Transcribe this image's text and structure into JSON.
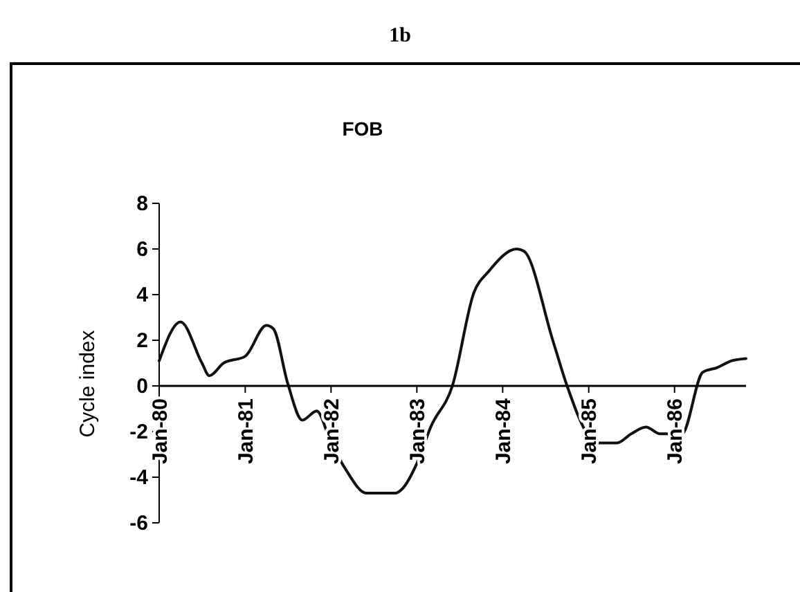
{
  "chart_data": {
    "type": "line",
    "title": "1b",
    "subtitle": "FOB",
    "ylabel": "Cycle index",
    "x": [
      "1980-01",
      "1980-04",
      "1980-07",
      "1980-08",
      "1980-10",
      "1981-01",
      "1981-04",
      "1981-05",
      "1981-07",
      "1981-09",
      "1981-11",
      "1982-01",
      "1982-03",
      "1982-06",
      "1982-10",
      "1982-11",
      "1983-01",
      "1983-03",
      "1983-06",
      "1983-09",
      "1983-11",
      "1984-03",
      "1984-04",
      "1984-08",
      "1984-10",
      "1985-01",
      "1985-02",
      "1985-05",
      "1985-07",
      "1985-09",
      "1985-11",
      "1986-02",
      "1986-05",
      "1986-07",
      "1986-09",
      "1986-11"
    ],
    "series": [
      {
        "color": "#111111",
        "values": [
          1.1,
          2.8,
          1.0,
          0.45,
          1.0,
          1.3,
          2.65,
          2.5,
          0.1,
          -1.5,
          -1.1,
          -2.5,
          -3.6,
          -4.7,
          -4.7,
          -4.5,
          -3.4,
          -1.8,
          0,
          4.1,
          5.0,
          6.0,
          5.9,
          2.0,
          0,
          -2.2,
          -2.5,
          -2.5,
          -2.1,
          -1.8,
          -2.1,
          -2.1,
          0.6,
          0.8,
          1.1,
          1.2
        ]
      }
    ],
    "xlim": [
      "1980-01",
      "1986-11"
    ],
    "xticks": [
      {
        "value": "1980-01",
        "label": "Jan-80"
      },
      {
        "value": "1981-01",
        "label": "Jan-81"
      },
      {
        "value": "1982-01",
        "label": "Jan-82"
      },
      {
        "value": "1983-01",
        "label": "Jan-83"
      },
      {
        "value": "1984-01",
        "label": "Jan-84"
      },
      {
        "value": "1985-01",
        "label": "Jan-85"
      },
      {
        "value": "1986-01",
        "label": "Jan-86"
      }
    ],
    "ylim": [
      -6,
      8
    ],
    "yticks": [
      -6,
      -4,
      -2,
      0,
      2,
      4,
      6,
      8
    ],
    "grid": false,
    "marker": "none",
    "line_style": "solid"
  }
}
